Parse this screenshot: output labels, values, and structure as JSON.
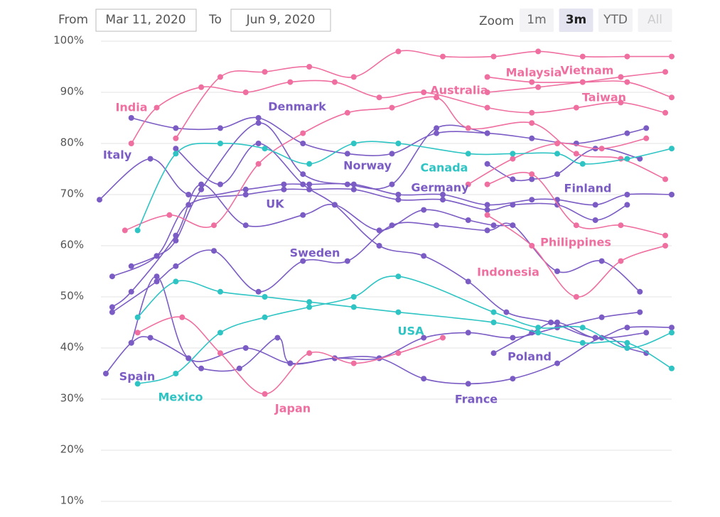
{
  "toolbar": {
    "from_label": "From",
    "from": "Mar 11, 2020",
    "to_label": "To",
    "to": "Jun 9, 2020",
    "zoom_label": "Zoom",
    "zoom_buttons": [
      "1m",
      "3m",
      "YTD",
      "All"
    ],
    "selected": "3m",
    "disabled": "All"
  },
  "chart_data": {
    "type": "line",
    "smooth": true,
    "markers": true,
    "grid": true,
    "xlim": [
      "2020-03-11",
      "2020-06-09"
    ],
    "ylim": [
      10,
      100
    ],
    "yticks": [
      {
        "value": 10,
        "label": "10%"
      },
      {
        "value": 20,
        "label": "20%"
      },
      {
        "value": 30,
        "label": "30%"
      },
      {
        "value": 40,
        "label": "40%"
      },
      {
        "value": 50,
        "label": "50%"
      },
      {
        "value": 60,
        "label": "60%"
      },
      {
        "value": 70,
        "label": "70%"
      },
      {
        "value": 80,
        "label": "80%"
      },
      {
        "value": 90,
        "label": "90%"
      },
      {
        "value": 100,
        "label": "100%"
      }
    ],
    "series": [
      {
        "name": "Italy",
        "color": "#7b5cc4",
        "x": [
          "2020-03-11",
          "2020-03-19",
          "2020-03-25",
          "2020-04-03",
          "2020-04-09",
          "2020-04-13",
          "2020-04-20",
          "2020-04-27",
          "2020-05-04",
          "2020-05-11",
          "2020-05-18",
          "2020-05-22",
          "2020-05-28",
          "2020-06-02",
          "2020-06-09"
        ],
        "values": [
          69,
          77,
          70,
          71,
          72,
          72,
          72,
          70,
          70,
          68,
          69,
          69,
          68,
          70,
          70
        ]
      },
      {
        "name": "Denmark",
        "color": "#7b5cc4",
        "x": [
          "2020-03-16",
          "2020-03-23",
          "2020-03-30",
          "2020-04-05",
          "2020-04-12",
          "2020-04-19",
          "2020-04-26",
          "2020-05-03",
          "2020-05-11",
          "2020-05-18",
          "2020-05-25",
          "2020-06-02",
          "2020-06-05"
        ],
        "values": [
          85,
          83,
          83,
          85,
          80,
          78,
          78,
          82,
          82,
          81,
          80,
          82,
          83
        ]
      },
      {
        "name": "Norway",
        "color": "#7b5cc4",
        "x": [
          "2020-03-16",
          "2020-03-20",
          "2020-03-23",
          "2020-03-27",
          "2020-04-05",
          "2020-04-12",
          "2020-04-19",
          "2020-04-26",
          "2020-05-03",
          "2020-05-11"
        ],
        "values": [
          56,
          58,
          61,
          71,
          84,
          74,
          72,
          72,
          83,
          82
        ]
      },
      {
        "name": "Germany",
        "color": "#7b5cc4",
        "x": [
          "2020-03-13",
          "2020-03-20",
          "2020-03-25",
          "2020-04-03",
          "2020-04-09",
          "2020-04-13",
          "2020-04-20",
          "2020-04-27",
          "2020-05-04",
          "2020-05-11",
          "2020-05-15",
          "2020-05-22",
          "2020-05-28",
          "2020-06-02"
        ],
        "values": [
          54,
          58,
          68,
          70,
          71,
          71,
          71,
          69,
          69,
          67,
          68,
          68,
          65,
          68
        ]
      },
      {
        "name": "UK",
        "color": "#7b5cc4",
        "x": [
          "2020-03-13",
          "2020-03-16",
          "2020-03-23",
          "2020-03-27",
          "2020-04-03",
          "2020-04-12",
          "2020-04-17",
          "2020-04-24",
          "2020-05-01",
          "2020-05-08",
          "2020-05-12",
          "2020-05-15"
        ],
        "values": [
          48,
          51,
          62,
          72,
          64,
          66,
          68,
          63,
          67,
          65,
          64,
          64
        ]
      },
      {
        "name": "Sweden",
        "color": "#7b5cc4",
        "x": [
          "2020-03-13",
          "2020-03-20",
          "2020-03-23",
          "2020-03-29",
          "2020-04-05",
          "2020-04-12",
          "2020-04-19",
          "2020-04-26",
          "2020-05-03",
          "2020-05-11",
          "2020-05-15",
          "2020-05-22",
          "2020-05-29",
          "2020-06-04"
        ],
        "values": [
          47,
          53,
          56,
          59,
          51,
          57,
          57,
          64,
          64,
          63,
          64,
          55,
          57,
          51
        ]
      },
      {
        "name": "Finland",
        "color": "#7b5cc4",
        "x": [
          "2020-05-11",
          "2020-05-15",
          "2020-05-18",
          "2020-05-22",
          "2020-05-28",
          "2020-06-04"
        ],
        "values": [
          76,
          73,
          73,
          74,
          79,
          77
        ]
      },
      {
        "name": "Spain",
        "color": "#7b5cc4",
        "x": [
          "2020-03-12",
          "2020-03-16",
          "2020-03-19",
          "2020-03-25",
          "2020-03-27",
          "2020-04-02",
          "2020-04-08",
          "2020-04-10",
          "2020-04-17",
          "2020-04-24",
          "2020-05-01",
          "2020-05-08",
          "2020-05-15",
          "2020-05-22",
          "2020-05-29",
          "2020-06-04"
        ],
        "values": [
          35,
          41,
          42,
          38,
          36,
          36,
          42,
          37,
          38,
          38,
          42,
          43,
          42,
          44,
          46,
          47
        ]
      },
      {
        "name": "France",
        "color": "#7b5cc4",
        "x": [
          "2020-03-16",
          "2020-03-20",
          "2020-03-25",
          "2020-04-03",
          "2020-04-10",
          "2020-04-17",
          "2020-04-24",
          "2020-05-01",
          "2020-05-08",
          "2020-05-15",
          "2020-05-22",
          "2020-05-29",
          "2020-06-02",
          "2020-06-05"
        ],
        "values": [
          41,
          54,
          38,
          40,
          37,
          38,
          38,
          34,
          33,
          34,
          37,
          42,
          40,
          39
        ]
      },
      {
        "name": "Poland",
        "color": "#7b5cc4",
        "x": [
          "2020-05-12",
          "2020-05-18",
          "2020-05-22",
          "2020-05-28",
          "2020-06-02",
          "2020-06-09"
        ],
        "values": [
          39,
          43,
          45,
          42,
          44,
          44
        ]
      },
      {
        "color": "#7b5cc4",
        "x": [
          "2020-03-23",
          "2020-03-30",
          "2020-04-05",
          "2020-04-12",
          "2020-04-17",
          "2020-04-24",
          "2020-05-01",
          "2020-05-08",
          "2020-05-14",
          "2020-05-21",
          "2020-05-28",
          "2020-06-05"
        ],
        "values": [
          79,
          72,
          80,
          72,
          68,
          60,
          58,
          53,
          47,
          45,
          42,
          43
        ]
      },
      {
        "name": "India",
        "color": "#ef6fa0",
        "x": [
          "2020-03-16",
          "2020-03-20",
          "2020-03-27",
          "2020-04-03",
          "2020-04-10",
          "2020-04-17",
          "2020-04-24",
          "2020-05-01",
          "2020-05-11",
          "2020-05-18",
          "2020-05-25",
          "2020-06-01",
          "2020-06-08"
        ],
        "values": [
          80,
          87,
          91,
          90,
          92,
          92,
          89,
          90,
          87,
          86,
          87,
          88,
          86
        ]
      },
      {
        "name": "Malaysia",
        "color": "#ef6fa0",
        "x": [
          "2020-03-23",
          "2020-03-30",
          "2020-04-06",
          "2020-04-13",
          "2020-04-20",
          "2020-04-27",
          "2020-05-04",
          "2020-05-12",
          "2020-05-19",
          "2020-05-26",
          "2020-06-02",
          "2020-06-09"
        ],
        "values": [
          81,
          93,
          94,
          95,
          93,
          98,
          97,
          97,
          98,
          97,
          97,
          97
        ]
      },
      {
        "name": "Vietnam",
        "color": "#ef6fa0",
        "x": [
          "2020-05-11",
          "2020-05-18",
          "2020-05-26",
          "2020-06-02",
          "2020-06-09"
        ],
        "values": [
          93,
          92,
          92,
          92,
          89
        ]
      },
      {
        "name": "Australia",
        "color": "#ef6fa0",
        "x": [
          "2020-05-11",
          "2020-05-19",
          "2020-05-26",
          "2020-06-01",
          "2020-06-08"
        ],
        "values": [
          90,
          91,
          92,
          93,
          94
        ]
      },
      {
        "name": "Taiwan",
        "color": "#ef6fa0",
        "x": [
          "2020-05-08",
          "2020-05-15",
          "2020-05-22",
          "2020-05-29",
          "2020-06-05"
        ],
        "values": [
          72,
          77,
          80,
          79,
          81
        ]
      },
      {
        "name": "Philippines",
        "color": "#ef6fa0",
        "x": [
          "2020-05-11",
          "2020-05-18",
          "2020-05-25",
          "2020-06-01",
          "2020-06-08"
        ],
        "values": [
          72,
          74,
          64,
          64,
          62
        ]
      },
      {
        "name": "Indonesia",
        "color": "#ef6fa0",
        "x": [
          "2020-05-11",
          "2020-05-18",
          "2020-05-25",
          "2020-06-01",
          "2020-06-08"
        ],
        "values": [
          66,
          60,
          50,
          57,
          60
        ]
      },
      {
        "name": "Japan",
        "color": "#ef6fa0",
        "x": [
          "2020-03-17",
          "2020-03-24",
          "2020-03-30",
          "2020-04-06",
          "2020-04-13",
          "2020-04-20",
          "2020-04-27",
          "2020-05-04"
        ],
        "values": [
          43,
          46,
          39,
          31,
          39,
          37,
          39,
          42
        ]
      },
      {
        "color": "#ef6fa0",
        "x": [
          "2020-03-15",
          "2020-03-22",
          "2020-03-29",
          "2020-04-05",
          "2020-04-12",
          "2020-04-19",
          "2020-04-26",
          "2020-05-03",
          "2020-05-08",
          "2020-05-18",
          "2020-05-25",
          "2020-06-01",
          "2020-06-08"
        ],
        "values": [
          63,
          66,
          64,
          76,
          82,
          86,
          87,
          89,
          83,
          84,
          78,
          77,
          73
        ]
      },
      {
        "name": "Canada",
        "color": "#2ec4c4",
        "x": [
          "2020-03-17",
          "2020-03-23",
          "2020-03-30",
          "2020-04-06",
          "2020-04-13",
          "2020-04-20",
          "2020-04-27",
          "2020-05-08",
          "2020-05-15",
          "2020-05-22",
          "2020-05-26",
          "2020-06-02",
          "2020-06-09"
        ],
        "values": [
          63,
          78,
          80,
          79,
          76,
          80,
          80,
          78,
          78,
          78,
          76,
          77,
          79
        ]
      },
      {
        "name": "USA",
        "color": "#2ec4c4",
        "x": [
          "2020-03-17",
          "2020-03-23",
          "2020-03-30",
          "2020-04-06",
          "2020-04-13",
          "2020-04-20",
          "2020-04-27",
          "2020-05-12",
          "2020-05-19",
          "2020-05-26",
          "2020-06-02",
          "2020-06-09"
        ],
        "values": [
          46,
          53,
          51,
          50,
          49,
          48,
          47,
          45,
          43,
          41,
          41,
          36
        ]
      },
      {
        "name": "Mexico",
        "color": "#2ec4c4",
        "x": [
          "2020-03-17",
          "2020-03-23",
          "2020-03-30",
          "2020-04-06",
          "2020-04-13",
          "2020-04-20",
          "2020-04-27",
          "2020-05-12",
          "2020-05-19",
          "2020-05-26",
          "2020-06-02",
          "2020-06-09"
        ],
        "values": [
          33,
          35,
          43,
          46,
          48,
          50,
          54,
          47,
          44,
          44,
          40,
          43
        ]
      }
    ]
  }
}
